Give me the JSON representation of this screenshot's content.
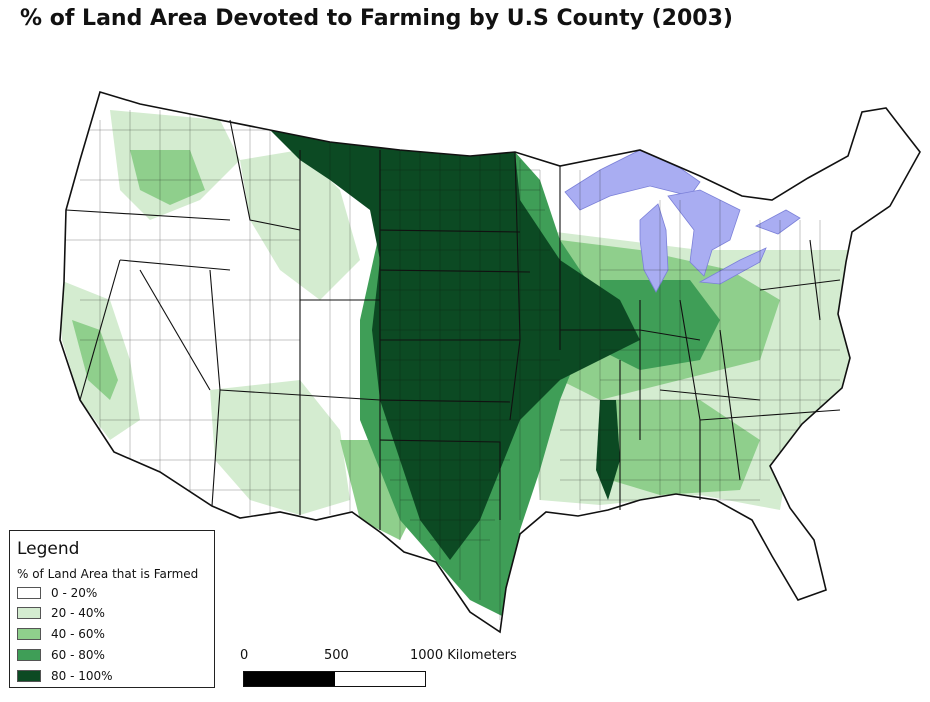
{
  "title": "% of Land Area Devoted to Farming by U.S County (2003)",
  "legend": {
    "title": "Legend",
    "subtitle": "% of Land Area that is Farmed",
    "classes": [
      {
        "label": "0 - 20%",
        "color": "#ffffff"
      },
      {
        "label": "20 - 40%",
        "color": "#d4ecd0"
      },
      {
        "label": "40 - 60%",
        "color": "#8fcf8c"
      },
      {
        "label": "60 - 80%",
        "color": "#3f9e57"
      },
      {
        "label": "80 - 100%",
        "color": "#0c4a23"
      }
    ]
  },
  "scale": {
    "labels": [
      "0",
      "500",
      "1000 Kilometers"
    ]
  },
  "colors": {
    "lakes": "#a9adf2",
    "borders": "#222222"
  }
}
